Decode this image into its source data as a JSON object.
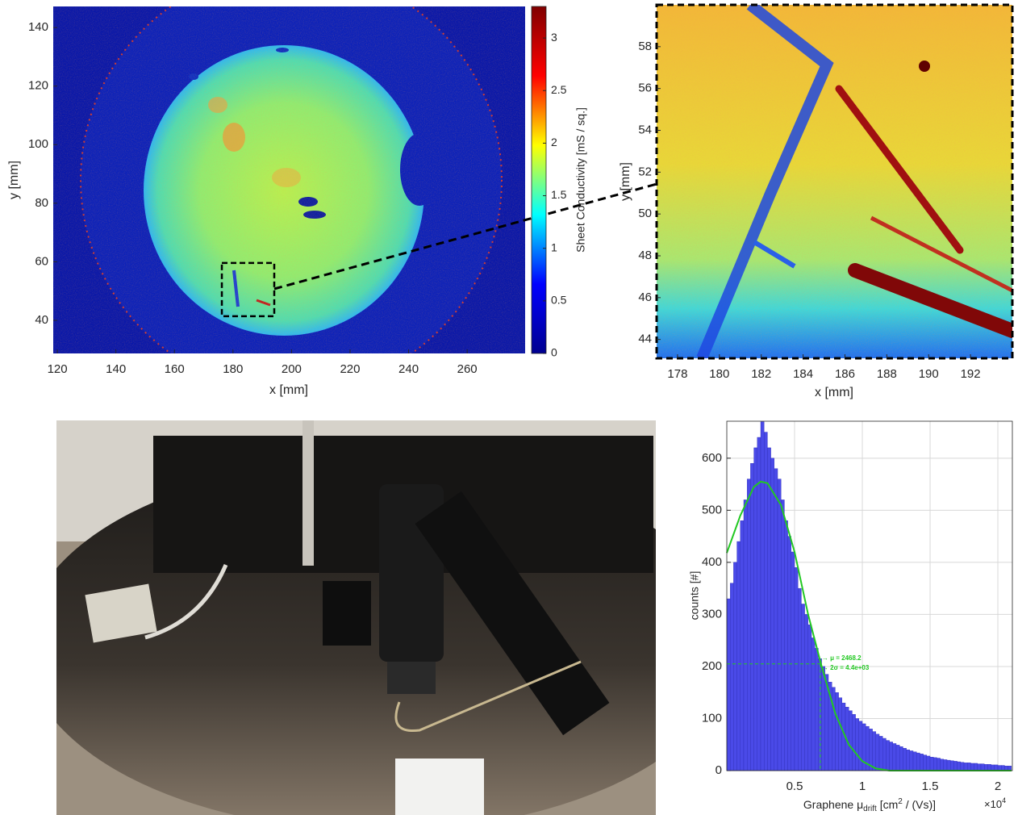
{
  "chart_data": [
    {
      "type": "heatmap",
      "xlabel": "x [mm]",
      "ylabel": "y [mm]",
      "xlim": [
        118.6,
        279.8
      ],
      "ylim": [
        28.7,
        147.2
      ],
      "xticks": [
        120,
        140,
        160,
        180,
        200,
        220,
        240,
        260
      ],
      "yticks": [
        40,
        60,
        80,
        100,
        120,
        140
      ],
      "colorbar": {
        "label": "Sheet Conductivity [mS / sq.]",
        "clim": [
          0,
          3.3
        ],
        "ticks": [
          0,
          0.5,
          1,
          1.5,
          2,
          2.5,
          3
        ],
        "colormap": "jet"
      },
      "zoom_box": {
        "x": [
          176.2,
          194.1
        ],
        "y": [
          41.4,
          59.6
        ]
      }
    },
    {
      "type": "heatmap",
      "xlabel": "x [mm]",
      "ylabel": "y [mm]",
      "xlim": [
        177.0,
        194.0
      ],
      "ylim": [
        43.1,
        60.0
      ],
      "xticks": [
        178,
        180,
        182,
        184,
        186,
        188,
        190,
        192
      ],
      "yticks": [
        44,
        46,
        48,
        50,
        52,
        54,
        56,
        58
      ]
    },
    {
      "type": "histogram",
      "ylabel": "counts [#]",
      "xlabel": {
        "pre": "Graphene μ",
        "sub": "drift",
        "mid": " [cm",
        "sup": "2",
        "post": " / (Vs)]"
      },
      "x_multiplier": {
        "base": "×10",
        "exponent": "4"
      },
      "xlim": [
        0,
        21070
      ],
      "ylim": [
        0,
        671
      ],
      "xticks": [
        {
          "value": 5000,
          "label": "0.5"
        },
        {
          "value": 10000,
          "label": "1"
        },
        {
          "value": 15000,
          "label": "1.5"
        },
        {
          "value": 20000,
          "label": "2"
        }
      ],
      "yticks": [
        0,
        100,
        200,
        300,
        400,
        500,
        600
      ],
      "grid": true,
      "color": "#4a4ae8",
      "edge_color": "#2e2eb8",
      "bins": [
        0,
        250,
        500,
        750,
        1000,
        1250,
        1500,
        1750,
        2000,
        2250,
        2500,
        2750,
        3000,
        3250,
        3500,
        3750,
        4000,
        4250,
        4500,
        4750,
        5000,
        5250,
        5500,
        5750,
        6000,
        6250,
        6500,
        6750,
        7000,
        7250,
        7500,
        7750,
        8000,
        8250,
        8500,
        8750,
        9000,
        9250,
        9500,
        9750,
        10000,
        10250,
        10500,
        10750,
        11000,
        11250,
        11500,
        11750,
        12000,
        12250,
        12500,
        12750,
        13000,
        13250,
        13500,
        13750,
        14000,
        14250,
        14500,
        14750,
        15000,
        15250,
        15500,
        15750,
        16000,
        16250,
        16500,
        16750,
        17000,
        17250,
        17500,
        17750,
        18000,
        18250,
        18500,
        18750,
        19000,
        19250,
        19500,
        19750,
        20000,
        20250,
        20500,
        20750,
        21000
      ],
      "counts": [
        330,
        360,
        400,
        440,
        480,
        520,
        560,
        590,
        620,
        640,
        670,
        650,
        620,
        600,
        580,
        560,
        520,
        480,
        450,
        420,
        390,
        350,
        320,
        300,
        280,
        255,
        235,
        215,
        200,
        185,
        170,
        160,
        150,
        140,
        130,
        122,
        115,
        108,
        100,
        95,
        90,
        85,
        80,
        75,
        70,
        66,
        62,
        58,
        55,
        52,
        49,
        46,
        43,
        40,
        38,
        36,
        34,
        32,
        30,
        28,
        26,
        25,
        24,
        22,
        21,
        20,
        19,
        18,
        17,
        16,
        15,
        15,
        14,
        14,
        13,
        13,
        12,
        12,
        11,
        11,
        10,
        10,
        9,
        9
      ],
      "fit": {
        "color": "#22c822",
        "x": [
          0,
          1000,
          2000,
          2500,
          3000,
          4000,
          5000,
          6000,
          7000,
          8000,
          9000,
          10000,
          11000,
          12000,
          21000
        ],
        "values": [
          418,
          490,
          545,
          555,
          552,
          510,
          420,
          300,
          200,
          110,
          50,
          18,
          4,
          0,
          0
        ]
      },
      "marker": {
        "x": 6900,
        "y": 205
      },
      "annotations": [
        "→ μ = 2468.2",
        "→ 2σ = 4.4e+03"
      ]
    }
  ]
}
